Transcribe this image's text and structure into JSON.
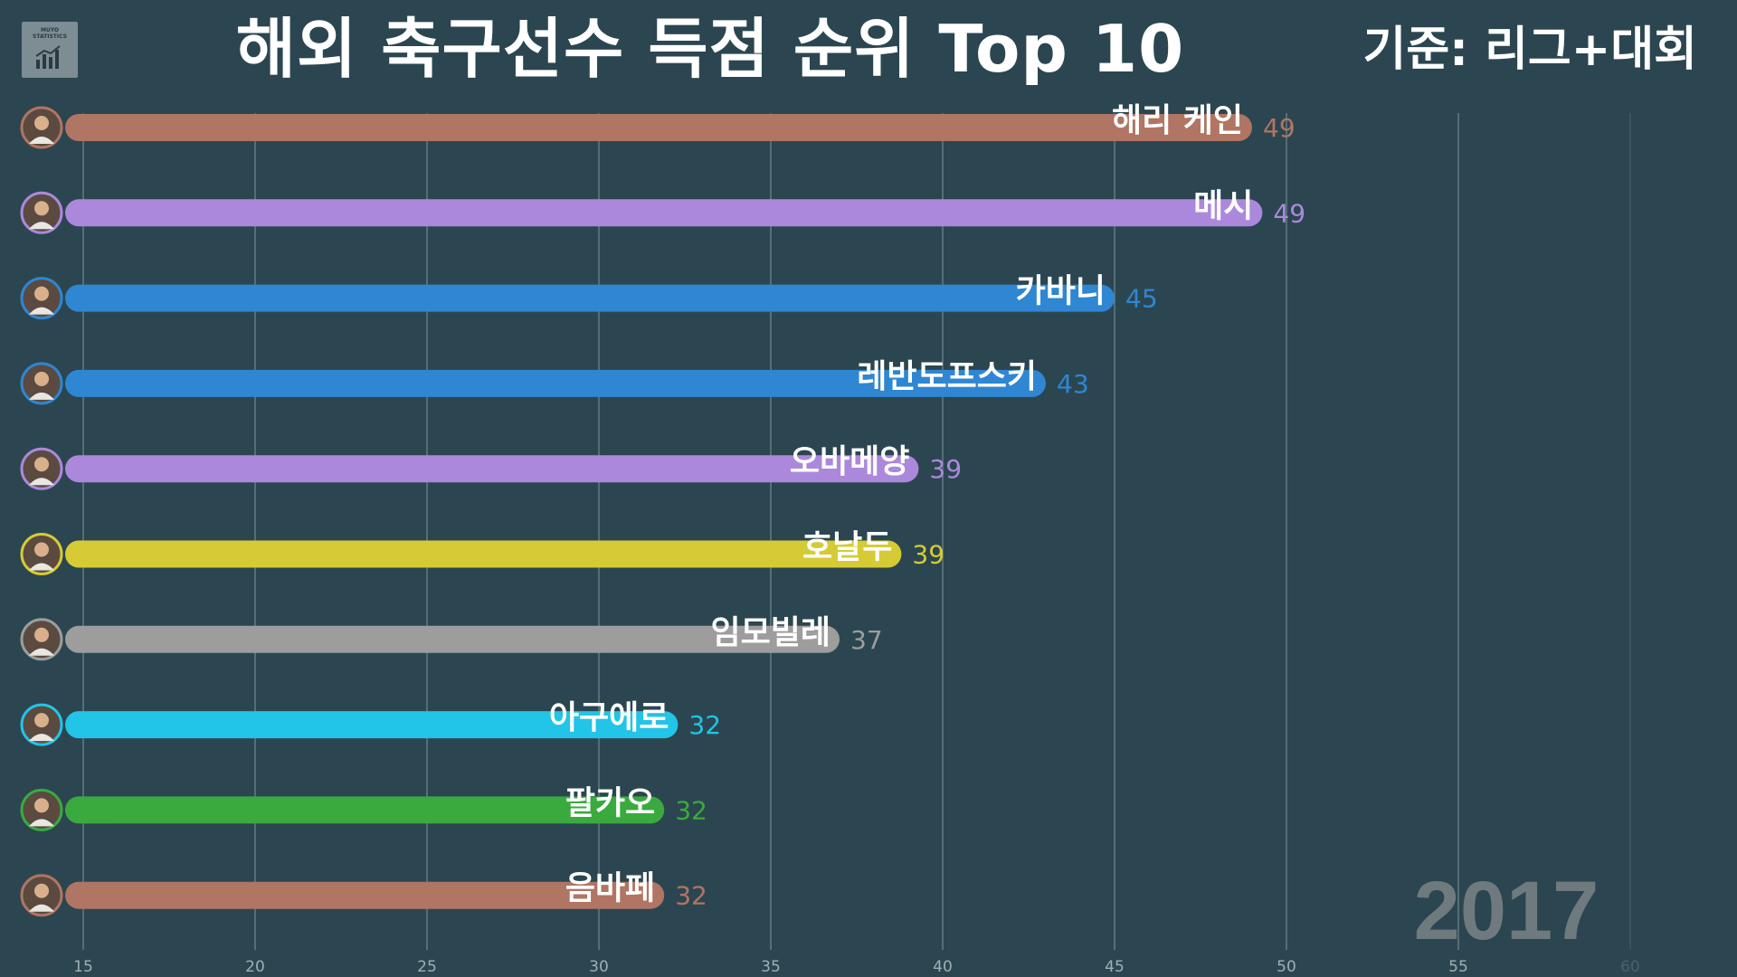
{
  "header": {
    "title": "해외 축구선수 득점 순위 Top 10",
    "criteria": "기준: 리그+대회",
    "logo_text_line1": "MUYO",
    "logo_text_line2": "STATISTICS"
  },
  "chart_data": {
    "type": "bar",
    "orientation": "horizontal",
    "title": "해외 축구선수 득점 순위 Top 10",
    "subtitle": "기준: 리그+대회",
    "year": "2017",
    "xlim": [
      15,
      60
    ],
    "xticks": [
      15,
      20,
      25,
      30,
      35,
      40,
      45,
      50,
      55,
      60
    ],
    "categories": [
      "해리 케인",
      "메시",
      "카바니",
      "레반도프스키",
      "오바메양",
      "호날두",
      "임모빌레",
      "아구에로",
      "팔카오",
      "음바페"
    ],
    "values": [
      49,
      49.3,
      45,
      43,
      39.3,
      38.8,
      37,
      32.3,
      31.9,
      31.9
    ],
    "value_labels": [
      "49",
      "49",
      "45",
      "43",
      "39",
      "39",
      "37",
      "32",
      "32",
      "32"
    ],
    "colors": [
      "#b07563",
      "#ac88dc",
      "#2f86d2",
      "#2f86d2",
      "#ac88dc",
      "#d6cb34",
      "#9d9d9d",
      "#22c4e7",
      "#3aaa3f",
      "#b07563"
    ],
    "grid": true,
    "xlabel": "",
    "ylabel": ""
  }
}
